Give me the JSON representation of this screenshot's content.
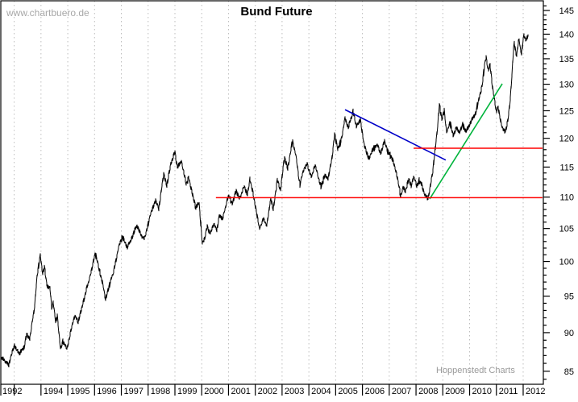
{
  "title": "Bund Future",
  "watermark": "www.chartbuero.de",
  "attribution": "Hoppenstedt Charts",
  "colors": {
    "price": "#000000",
    "trend_down": "#0000c8",
    "trend_up": "#00b43c",
    "level": "#ff0000",
    "grid": "#bdbdbd",
    "frame": "#000000",
    "tick_text": "#000000"
  },
  "chart_data": {
    "type": "line",
    "title": "Bund Future",
    "xlabel": "",
    "ylabel": "",
    "legend": "none",
    "grid": "vertical-dashed-per-year",
    "y_axis": {
      "side": "right",
      "scale": "log",
      "major_ticks": [
        85,
        90,
        95,
        100,
        105,
        110,
        115,
        120,
        125,
        130,
        135,
        140,
        145
      ],
      "minor_step": 1,
      "minor_range": [
        84,
        146
      ],
      "range": [
        83.2,
        146.9
      ]
    },
    "x_axis": {
      "edge_label": "1992",
      "tick_years": [
        1993,
        1994,
        1995,
        1996,
        1997,
        1998,
        1999,
        2000,
        2001,
        2002,
        2003,
        2004,
        2005,
        2006,
        2007,
        2008,
        2009,
        2010,
        2011,
        2012
      ],
      "tick_labels": [
        "",
        "1994",
        "1995",
        "1996",
        "1997",
        "1998",
        "1999",
        "2000",
        "2001",
        "2002",
        "2003",
        "2004",
        "2005",
        "2006",
        "2007",
        "2008",
        "2009",
        "2010",
        "2011",
        "2012"
      ],
      "range": [
        1992.5,
        2012.75
      ]
    },
    "series": [
      {
        "name": "Bund Future price",
        "style": "dense-daily-line",
        "points": [
          [
            1992.53,
            86.8
          ],
          [
            1992.68,
            86.2
          ],
          [
            1992.8,
            85.9
          ],
          [
            1992.89,
            87.0
          ],
          [
            1993.01,
            88.2
          ],
          [
            1993.22,
            87.3
          ],
          [
            1993.37,
            88.2
          ],
          [
            1993.46,
            89.8
          ],
          [
            1993.58,
            89.1
          ],
          [
            1993.76,
            93.5
          ],
          [
            1993.85,
            97.8
          ],
          [
            1993.97,
            101.2
          ],
          [
            1994.06,
            98.3
          ],
          [
            1994.13,
            99.5
          ],
          [
            1994.22,
            96.7
          ],
          [
            1994.34,
            96.1
          ],
          [
            1994.4,
            93.2
          ],
          [
            1994.46,
            94.3
          ],
          [
            1994.55,
            91.3
          ],
          [
            1994.61,
            92.2
          ],
          [
            1994.73,
            87.7
          ],
          [
            1994.82,
            88.7
          ],
          [
            1994.97,
            87.8
          ],
          [
            1995.12,
            90.4
          ],
          [
            1995.27,
            92.3
          ],
          [
            1995.39,
            91.4
          ],
          [
            1995.57,
            94.1
          ],
          [
            1995.72,
            96.2
          ],
          [
            1995.84,
            98.0
          ],
          [
            1996.02,
            101.1
          ],
          [
            1996.14,
            99.2
          ],
          [
            1996.29,
            96.9
          ],
          [
            1996.41,
            94.4
          ],
          [
            1996.56,
            96.5
          ],
          [
            1996.71,
            98.3
          ],
          [
            1996.92,
            102.6
          ],
          [
            1997.04,
            103.9
          ],
          [
            1997.22,
            102.0
          ],
          [
            1997.4,
            103.7
          ],
          [
            1997.59,
            105.4
          ],
          [
            1997.74,
            104.1
          ],
          [
            1997.86,
            103.4
          ],
          [
            1998.01,
            105.9
          ],
          [
            1998.13,
            108.0
          ],
          [
            1998.28,
            109.6
          ],
          [
            1998.4,
            107.9
          ],
          [
            1998.58,
            113.8
          ],
          [
            1998.7,
            112.1
          ],
          [
            1998.85,
            115.9
          ],
          [
            1999.0,
            117.7
          ],
          [
            1999.09,
            115.0
          ],
          [
            1999.24,
            116.1
          ],
          [
            1999.42,
            112.1
          ],
          [
            1999.51,
            113.3
          ],
          [
            1999.78,
            108.2
          ],
          [
            1999.9,
            109.3
          ],
          [
            2000.02,
            102.6
          ],
          [
            2000.11,
            103.6
          ],
          [
            2000.2,
            105.3
          ],
          [
            2000.32,
            104.1
          ],
          [
            2000.47,
            105.8
          ],
          [
            2000.57,
            104.9
          ],
          [
            2000.66,
            107.3
          ],
          [
            2000.78,
            106.4
          ],
          [
            2000.99,
            110.2
          ],
          [
            2001.14,
            109.0
          ],
          [
            2001.29,
            111.2
          ],
          [
            2001.41,
            109.8
          ],
          [
            2001.59,
            111.6
          ],
          [
            2001.71,
            110.4
          ],
          [
            2001.8,
            113.0
          ],
          [
            2001.92,
            110.4
          ],
          [
            2002.04,
            107.7
          ],
          [
            2002.16,
            104.9
          ],
          [
            2002.31,
            106.7
          ],
          [
            2002.43,
            105.5
          ],
          [
            2002.58,
            109.8
          ],
          [
            2002.67,
            108.2
          ],
          [
            2002.82,
            113.0
          ],
          [
            2002.94,
            111.1
          ],
          [
            2003.09,
            116.5
          ],
          [
            2003.21,
            114.6
          ],
          [
            2003.39,
            119.6
          ],
          [
            2003.51,
            117.1
          ],
          [
            2003.66,
            112.1
          ],
          [
            2003.81,
            114.6
          ],
          [
            2003.93,
            115.5
          ],
          [
            2004.09,
            113.3
          ],
          [
            2004.24,
            115.2
          ],
          [
            2004.36,
            113.2
          ],
          [
            2004.45,
            111.9
          ],
          [
            2004.6,
            113.8
          ],
          [
            2004.72,
            113.1
          ],
          [
            2004.87,
            116.6
          ],
          [
            2004.96,
            120.8
          ],
          [
            2005.08,
            118.3
          ],
          [
            2005.23,
            120.2
          ],
          [
            2005.35,
            123.8
          ],
          [
            2005.47,
            121.9
          ],
          [
            2005.65,
            124.7
          ],
          [
            2005.77,
            122.1
          ],
          [
            2005.92,
            123.4
          ],
          [
            2006.07,
            118.9
          ],
          [
            2006.25,
            116.5
          ],
          [
            2006.43,
            118.3
          ],
          [
            2006.55,
            119.1
          ],
          [
            2006.67,
            117.1
          ],
          [
            2006.82,
            119.4
          ],
          [
            2006.97,
            117.4
          ],
          [
            2007.12,
            116.2
          ],
          [
            2007.27,
            113.8
          ],
          [
            2007.43,
            110.2
          ],
          [
            2007.52,
            111.9
          ],
          [
            2007.61,
            111.0
          ],
          [
            2007.73,
            113.0
          ],
          [
            2007.82,
            111.5
          ],
          [
            2007.91,
            113.6
          ],
          [
            2008.03,
            111.6
          ],
          [
            2008.12,
            112.7
          ],
          [
            2008.21,
            112.1
          ],
          [
            2008.33,
            110.2
          ],
          [
            2008.45,
            109.7
          ],
          [
            2008.54,
            112.1
          ],
          [
            2008.63,
            114.6
          ],
          [
            2008.72,
            118.2
          ],
          [
            2008.81,
            122.1
          ],
          [
            2008.87,
            126.2
          ],
          [
            2008.96,
            123.5
          ],
          [
            2009.05,
            125.0
          ],
          [
            2009.14,
            121.1
          ],
          [
            2009.26,
            122.9
          ],
          [
            2009.38,
            120.5
          ],
          [
            2009.5,
            121.8
          ],
          [
            2009.62,
            120.8
          ],
          [
            2009.74,
            122.5
          ],
          [
            2009.86,
            121.2
          ],
          [
            2009.98,
            122.4
          ],
          [
            2010.1,
            123.7
          ],
          [
            2010.22,
            124.7
          ],
          [
            2010.34,
            127.0
          ],
          [
            2010.46,
            129.3
          ],
          [
            2010.55,
            133.3
          ],
          [
            2010.61,
            135.2
          ],
          [
            2010.7,
            132.5
          ],
          [
            2010.76,
            134.1
          ],
          [
            2010.85,
            129.4
          ],
          [
            2010.94,
            127.0
          ],
          [
            2011.0,
            124.6
          ],
          [
            2011.06,
            125.9
          ],
          [
            2011.15,
            123.3
          ],
          [
            2011.24,
            121.8
          ],
          [
            2011.33,
            121.0
          ],
          [
            2011.42,
            123.1
          ],
          [
            2011.51,
            126.5
          ],
          [
            2011.57,
            130.8
          ],
          [
            2011.66,
            138.8
          ],
          [
            2011.75,
            135.2
          ],
          [
            2011.84,
            139.3
          ],
          [
            2011.93,
            135.9
          ],
          [
            2012.02,
            140.0
          ],
          [
            2012.11,
            138.5
          ],
          [
            2012.17,
            139.5
          ]
        ]
      }
    ],
    "trendlines": [
      {
        "name": "downtrend-line",
        "color_key": "trend_down",
        "from": [
          2005.35,
          125.2
        ],
        "to": [
          2009.11,
          116.2
        ]
      },
      {
        "name": "uptrend-line",
        "color_key": "trend_up",
        "from": [
          2008.51,
          109.7
        ],
        "to": [
          2011.22,
          130.1
        ]
      }
    ],
    "horizontal_lines": [
      {
        "name": "support-level",
        "price": 109.9,
        "from_year": 2000.53,
        "to_year": 2012.72,
        "color_key": "level"
      },
      {
        "name": "resistance-level",
        "price": 118.25,
        "from_year": 2007.91,
        "to_year": 2012.72,
        "color_key": "level"
      }
    ]
  }
}
